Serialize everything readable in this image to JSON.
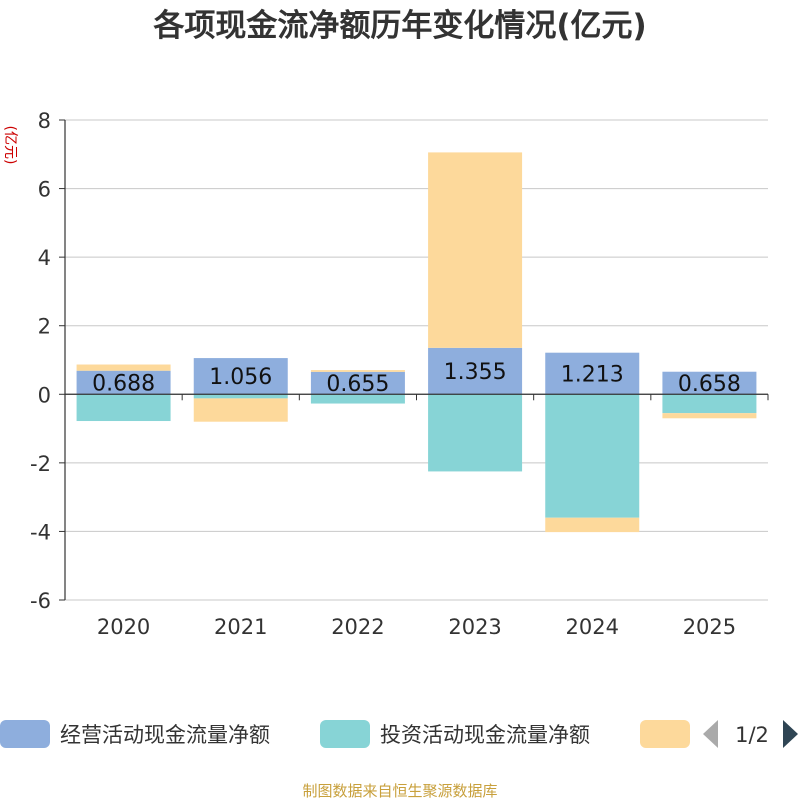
{
  "chart_data": {
    "type": "bar",
    "stacked": true,
    "title": "各项现金流净额历年变化情况(亿元)",
    "ylabel": "(亿元)",
    "xlabel": "",
    "ylim": [
      -6,
      8
    ],
    "yticks": [
      8,
      6,
      4,
      2,
      0,
      -2,
      -4,
      -6
    ],
    "categories": [
      "2020",
      "2021",
      "2022",
      "2023",
      "2024",
      "2025"
    ],
    "series": [
      {
        "name": "经营活动现金流量净额",
        "color": "#8eaedd",
        "values": [
          0.688,
          1.056,
          0.655,
          1.355,
          1.213,
          0.658
        ],
        "labels": [
          "0.688",
          "1.056",
          "0.655",
          "1.355",
          "1.213",
          "0.658"
        ]
      },
      {
        "name": "投资活动现金流量净额",
        "color": "#87d4d6",
        "values": [
          -0.78,
          -0.12,
          -0.27,
          -2.25,
          -3.6,
          -0.55
        ]
      },
      {
        "name": "",
        "color": "#fdd99b",
        "values": [
          0.18,
          -0.68,
          0.05,
          5.7,
          -0.42,
          -0.15
        ]
      }
    ],
    "legend": {
      "position": "bottom",
      "page": "1/2"
    }
  },
  "source": "制图数据来自恒生聚源数据库"
}
